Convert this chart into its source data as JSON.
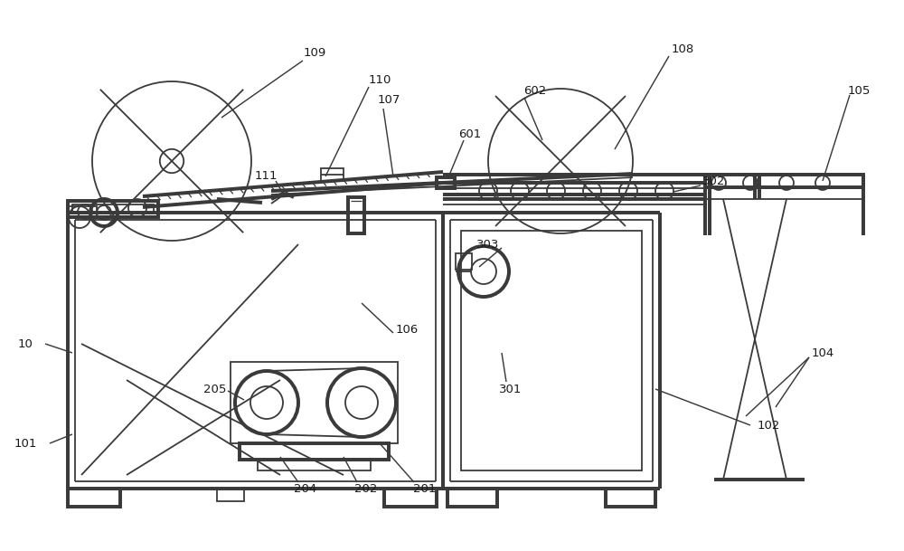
{
  "bg_color": "#ffffff",
  "lc": "#3a3a3a",
  "lw": 1.3,
  "fig_w": 10.0,
  "fig_h": 6.09,
  "dpi": 100
}
